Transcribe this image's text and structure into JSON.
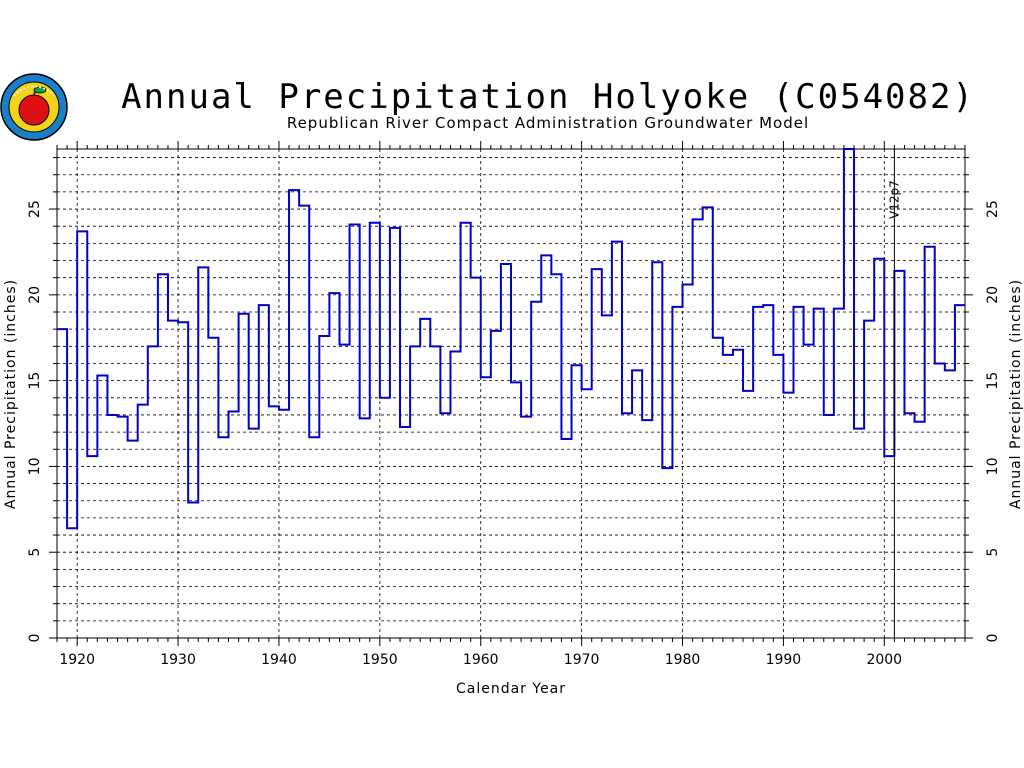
{
  "chart_data": {
    "type": "line",
    "style": "step",
    "title": "Annual Precipitation Holyoke (C054082)",
    "subtitle": "Republican River Compact Administration Groundwater Model",
    "xlabel": "Calendar Year",
    "ylabel": "Annual Precipitation (inches)",
    "xlim": [
      1918,
      2008
    ],
    "ylim": [
      0,
      28.5
    ],
    "x_ticks": [
      1920,
      1930,
      1940,
      1950,
      1960,
      1970,
      1980,
      1990,
      2000
    ],
    "y_ticks": [
      0,
      5,
      10,
      15,
      20,
      25
    ],
    "grid": true,
    "series_color": "#0000cc",
    "annotation": {
      "text": "V12p7",
      "x": 2001
    },
    "series": [
      {
        "x": [
          1918,
          1919,
          1920,
          1921,
          1922,
          1923,
          1924,
          1925,
          1926,
          1927,
          1928,
          1929,
          1930,
          1931,
          1932,
          1933,
          1934,
          1935,
          1936,
          1937,
          1938,
          1939,
          1940,
          1941,
          1942,
          1943,
          1944,
          1945,
          1946,
          1947,
          1948,
          1949,
          1950,
          1951,
          1952,
          1953,
          1954,
          1955,
          1956,
          1957,
          1958,
          1959,
          1960,
          1961,
          1962,
          1963,
          1964,
          1965,
          1966,
          1967,
          1968,
          1969,
          1970,
          1971,
          1972,
          1973,
          1974,
          1975,
          1976,
          1977,
          1978,
          1979,
          1980,
          1981,
          1982,
          1983,
          1984,
          1985,
          1986,
          1987,
          1988,
          1989,
          1990,
          1991,
          1992,
          1993,
          1994,
          1995,
          1996,
          1997,
          1998,
          1999,
          2000,
          2001,
          2002,
          2003,
          2004,
          2005,
          2006,
          2007
        ],
        "values": [
          18.0,
          6.4,
          23.7,
          10.6,
          15.3,
          13.0,
          12.9,
          11.5,
          13.6,
          17.0,
          21.2,
          18.5,
          18.4,
          7.9,
          21.6,
          17.5,
          11.7,
          13.2,
          18.9,
          12.2,
          19.4,
          13.5,
          13.3,
          26.1,
          25.2,
          11.7,
          17.6,
          20.1,
          17.1,
          24.1,
          12.8,
          24.2,
          14.0,
          23.9,
          12.3,
          17.0,
          18.6,
          17.0,
          13.1,
          16.7,
          24.2,
          21.0,
          15.2,
          17.9,
          21.8,
          14.9,
          12.9,
          19.6,
          22.3,
          21.2,
          11.6,
          15.9,
          14.5,
          21.5,
          18.8,
          23.1,
          13.1,
          15.6,
          12.7,
          21.9,
          9.9,
          19.3,
          20.6,
          24.4,
          25.1,
          17.5,
          16.5,
          16.8,
          14.4,
          19.3,
          19.4,
          16.5,
          14.3,
          19.3,
          17.1,
          19.2,
          13.0,
          19.2,
          28.5,
          12.2,
          18.5,
          22.1,
          10.6,
          21.4,
          13.1,
          12.6,
          22.8,
          16.0,
          15.6,
          19.4
        ]
      }
    ]
  }
}
